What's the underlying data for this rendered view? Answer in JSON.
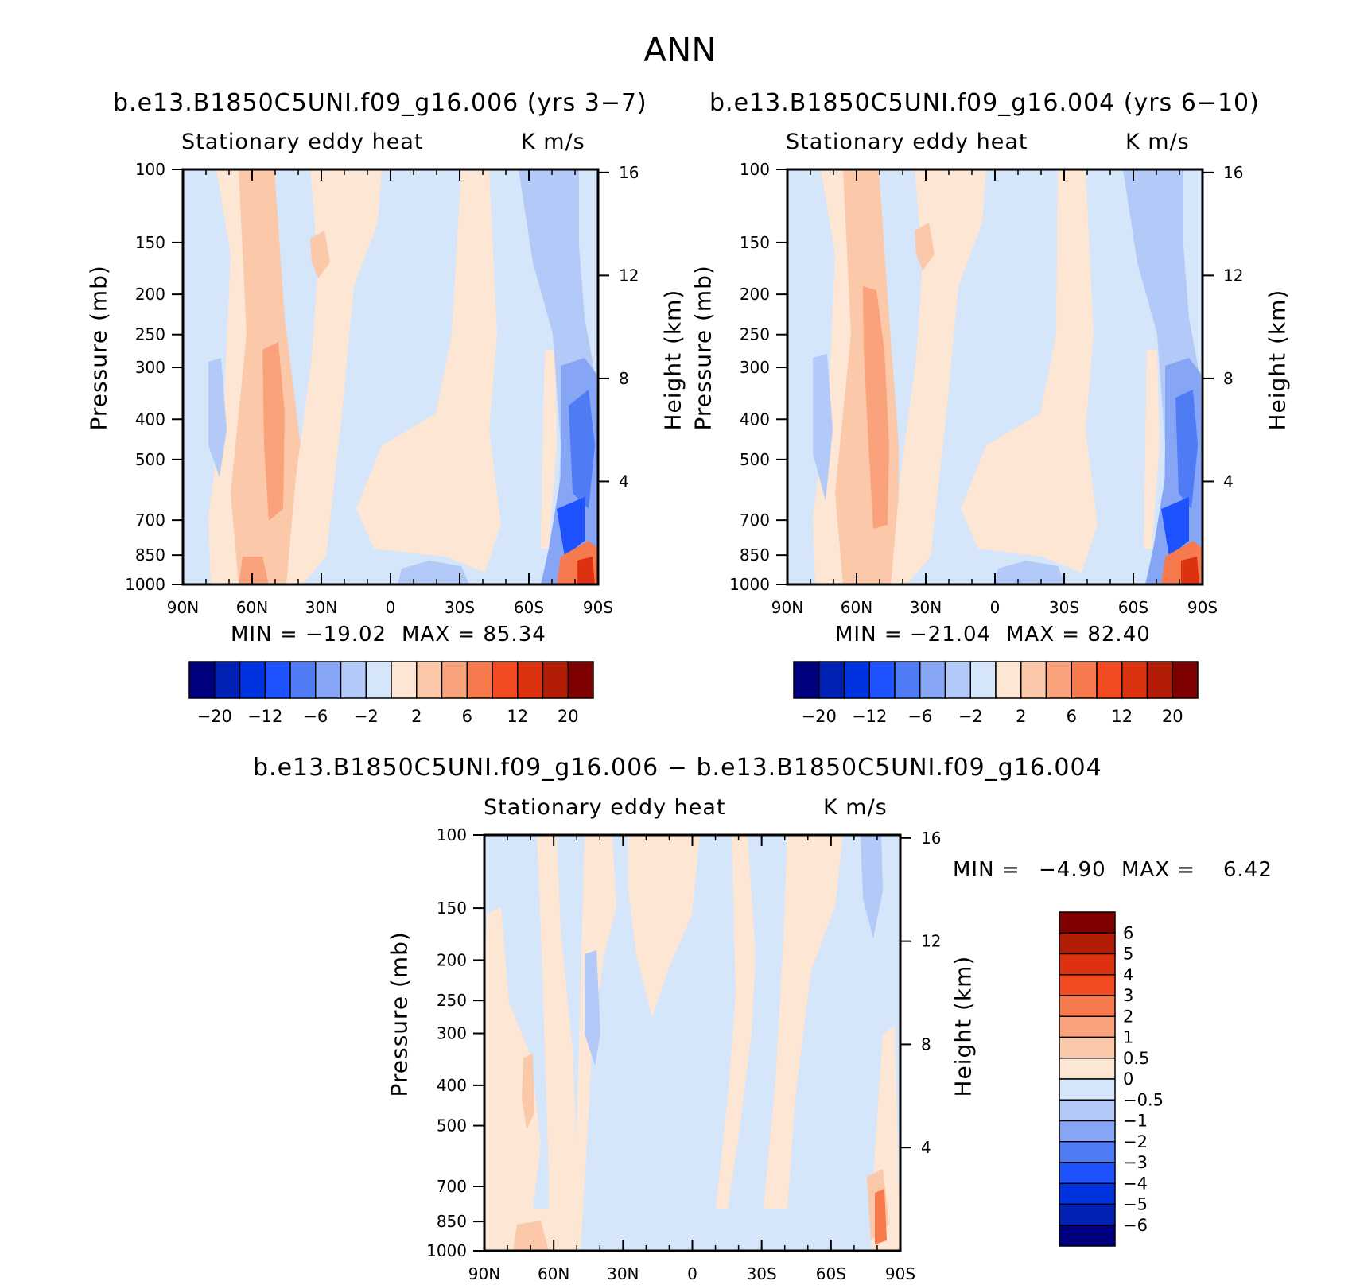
{
  "chart_data": [
    {
      "type": "heatmap",
      "panel": "top-left",
      "title": "b.e13.B1850C5UNI.f09_g16.006 (yrs 3−7)",
      "variable": "Stationary eddy heat",
      "units": "K m/s",
      "xlabel": "",
      "ylabel": "Pressure (mb)",
      "y2label": "Height (km)",
      "x_ticks": [
        "90N",
        "60N",
        "30N",
        "0",
        "30S",
        "60S",
        "90S"
      ],
      "y_ticks": [
        "100",
        "150",
        "200",
        "250",
        "300",
        "400",
        "500",
        "700",
        "850",
        "1000"
      ],
      "y2_ticks": [
        "16",
        "12",
        "8",
        "4"
      ],
      "min_label": "MIN = −19.02",
      "max_label": "MAX = 85.34",
      "min": -19.02,
      "max": 85.34,
      "colorbar_labels": [
        "−20",
        "−12",
        "−6",
        "−2",
        "2",
        "6",
        "12",
        "20"
      ]
    },
    {
      "type": "heatmap",
      "panel": "top-right",
      "title": "b.e13.B1850C5UNI.f09_g16.004 (yrs 6−10)",
      "variable": "Stationary eddy heat",
      "units": "K m/s",
      "xlabel": "",
      "ylabel": "Pressure (mb)",
      "y2label": "Height (km)",
      "x_ticks": [
        "90N",
        "60N",
        "30N",
        "0",
        "30S",
        "60S",
        "90S"
      ],
      "y_ticks": [
        "100",
        "150",
        "200",
        "250",
        "300",
        "400",
        "500",
        "700",
        "850",
        "1000"
      ],
      "y2_ticks": [
        "16",
        "12",
        "8",
        "4"
      ],
      "min_label": "MIN = −21.04",
      "max_label": "MAX = 82.40",
      "min": -21.04,
      "max": 82.4,
      "colorbar_labels": [
        "−20",
        "−12",
        "−6",
        "−2",
        "2",
        "6",
        "12",
        "20"
      ]
    },
    {
      "type": "heatmap",
      "panel": "bottom",
      "title": "b.e13.B1850C5UNI.f09_g16.006 − b.e13.B1850C5UNI.f09_g16.004",
      "variable": "Stationary eddy heat",
      "units": "K m/s",
      "xlabel": "",
      "ylabel": "Pressure (mb)",
      "y2label": "Height (km)",
      "x_ticks": [
        "90N",
        "60N",
        "30N",
        "0",
        "30S",
        "60S",
        "90S"
      ],
      "y_ticks": [
        "100",
        "150",
        "200",
        "250",
        "300",
        "400",
        "500",
        "700",
        "850",
        "1000"
      ],
      "y2_ticks": [
        "16",
        "12",
        "8",
        "4"
      ],
      "min_label": "MIN =",
      "min_value": "−4.90",
      "max_label": "MAX =",
      "max_value": "6.42",
      "min": -4.9,
      "max": 6.42,
      "colorbar_labels": [
        "6",
        "5",
        "4",
        "3",
        "2",
        "1",
        "0.5",
        "0",
        "−0.5",
        "−1",
        "−2",
        "−3",
        "−4",
        "−5",
        "−6"
      ]
    }
  ],
  "figure": {
    "title": "ANN"
  },
  "colors": {
    "palette": [
      "#00007f",
      "#0021b4",
      "#0033e0",
      "#1f52ff",
      "#4f7bf5",
      "#86a6f5",
      "#b3c9f7",
      "#d5e5fa",
      "#fde6d4",
      "#fbc8aa",
      "#f9a27c",
      "#f77a4e",
      "#f24b21",
      "#dd3210",
      "#b11e05",
      "#7f0000"
    ]
  }
}
